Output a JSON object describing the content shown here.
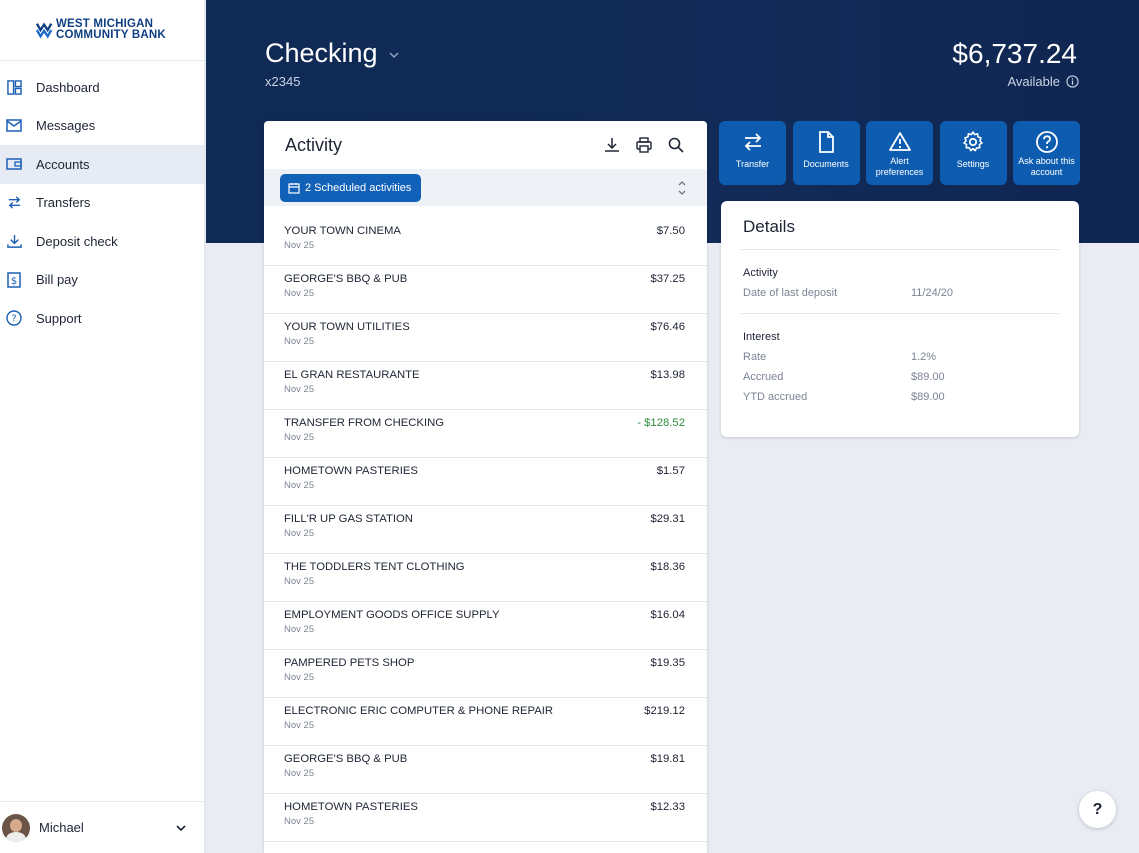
{
  "brand": {
    "line1": "WEST MICHIGAN",
    "line2": "COMMUNITY BANK",
    "color": "#0f3f84"
  },
  "sidebar": {
    "items": [
      {
        "label": "Dashboard",
        "icon": "dashboard-icon"
      },
      {
        "label": "Messages",
        "icon": "envelope-icon"
      },
      {
        "label": "Accounts",
        "icon": "wallet-icon",
        "active": true
      },
      {
        "label": "Transfers",
        "icon": "transfer-arrows-icon"
      },
      {
        "label": "Deposit check",
        "icon": "download-tray-icon"
      },
      {
        "label": "Bill pay",
        "icon": "dollar-document-icon"
      },
      {
        "label": "Support",
        "icon": "question-circle-icon"
      }
    ],
    "user": {
      "name": "Michael"
    }
  },
  "account": {
    "title": "Checking",
    "number": "x2345",
    "balance": "$6,737.24",
    "balance_label": "Available"
  },
  "activity": {
    "title": "Activity",
    "scheduled_label": "2 Scheduled activities",
    "transactions": [
      {
        "name": "YOUR TOWN CINEMA",
        "date": "Nov 25",
        "amount": "$7.50"
      },
      {
        "name": "GEORGE'S BBQ & PUB",
        "date": "Nov 25",
        "amount": "$37.25"
      },
      {
        "name": "YOUR TOWN UTILITIES",
        "date": "Nov 25",
        "amount": "$76.46"
      },
      {
        "name": "EL GRAN RESTAURANTE",
        "date": "Nov 25",
        "amount": "$13.98"
      },
      {
        "name": "TRANSFER FROM CHECKING",
        "date": "Nov 25",
        "amount": "- $128.52",
        "credit": true
      },
      {
        "name": "HOMETOWN PASTERIES",
        "date": "Nov 25",
        "amount": "$1.57"
      },
      {
        "name": "FILL'R UP GAS STATION",
        "date": "Nov 25",
        "amount": "$29.31"
      },
      {
        "name": "THE TODDLERS TENT CLOTHING",
        "date": "Nov 25",
        "amount": "$18.36"
      },
      {
        "name": "EMPLOYMENT GOODS OFFICE SUPPLY",
        "date": "Nov 25",
        "amount": "$16.04"
      },
      {
        "name": "PAMPERED PETS SHOP",
        "date": "Nov 25",
        "amount": "$19.35"
      },
      {
        "name": "ELECTRONIC ERIC COMPUTER & PHONE REPAIR",
        "date": "Nov 25",
        "amount": "$219.12"
      },
      {
        "name": "GEORGE'S BBQ & PUB",
        "date": "Nov 25",
        "amount": "$19.81"
      },
      {
        "name": "HOMETOWN PASTERIES",
        "date": "Nov 25",
        "amount": "$12.33"
      }
    ],
    "credit_color": "#2e8b3c"
  },
  "actions": [
    {
      "label": "Transfer",
      "icon": "transfer-arrows-icon"
    },
    {
      "label": "Documents",
      "icon": "document-icon"
    },
    {
      "label": "Alert preferences",
      "icon": "warning-triangle-icon"
    },
    {
      "label": "Settings",
      "icon": "gear-icon"
    },
    {
      "label": "Ask about this account",
      "icon": "question-circle-icon"
    }
  ],
  "details": {
    "title": "Details",
    "activity_heading": "Activity",
    "last_deposit_label": "Date of last deposit",
    "last_deposit_value": "11/24/20",
    "interest_heading": "Interest",
    "rate_label": "Rate",
    "rate_value": "1.2%",
    "accrued_label": "Accrued",
    "accrued_value": "$89.00",
    "ytd_label": "YTD accrued",
    "ytd_value": "$89.00"
  },
  "help_label": "?",
  "colors": {
    "header_bg": "#0f2a55",
    "accent": "#0d5cb0",
    "page_bg": "#e9edf3"
  }
}
